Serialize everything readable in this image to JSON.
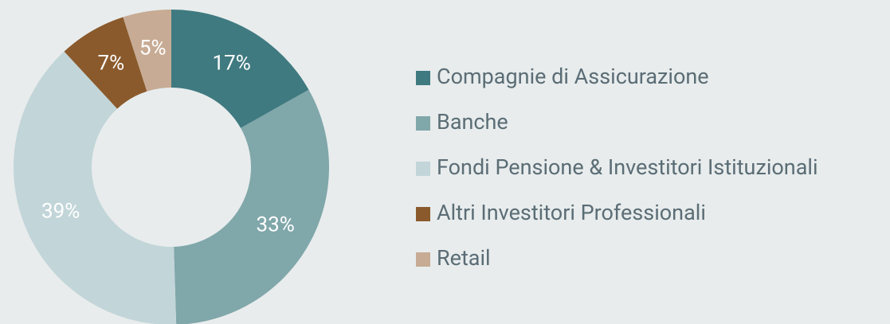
{
  "chart_data": {
    "type": "donut",
    "categories": [
      "Compagnie di Assicurazione",
      "Banche",
      "Fondi Pensione & Investitori Istituzionali",
      "Altri Investitori Professionali",
      "Retail"
    ],
    "values": [
      17,
      33,
      39,
      7,
      5
    ],
    "value_labels": [
      "17%",
      "33%",
      "39%",
      "7%",
      "5%"
    ],
    "colors": [
      "#3f7a80",
      "#80a7aa",
      "#c2d5d8",
      "#8a5a2c",
      "#c7ab94"
    ],
    "legend": "right"
  }
}
